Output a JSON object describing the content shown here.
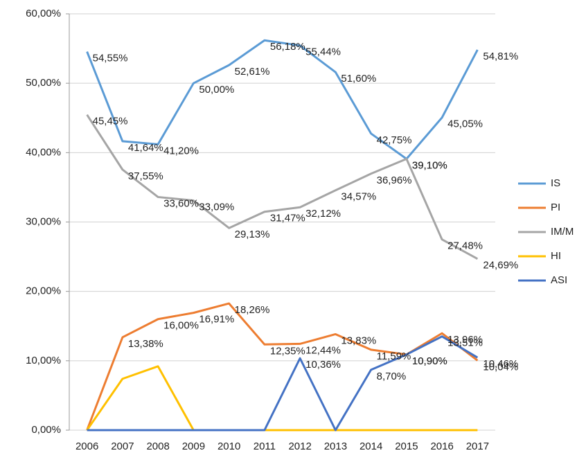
{
  "chart_data": {
    "type": "line",
    "categories": [
      "2006",
      "2007",
      "2008",
      "2009",
      "2010",
      "2011",
      "2012",
      "2013",
      "2014",
      "2015",
      "2016",
      "2017"
    ],
    "ylim": [
      0,
      60
    ],
    "yticks": [
      {
        "value": 0,
        "label": "0,00%"
      },
      {
        "value": 10,
        "label": "10,00%"
      },
      {
        "value": 20,
        "label": "20,00%"
      },
      {
        "value": 30,
        "label": "30,00%"
      },
      {
        "value": 40,
        "label": "40,00%"
      },
      {
        "value": 50,
        "label": "50,00%"
      },
      {
        "value": 60,
        "label": "60,00%"
      }
    ],
    "grid": true,
    "legend": "right",
    "series": [
      {
        "name": "IS",
        "color": "#5b9bd5",
        "values": [
          54.55,
          41.64,
          41.2,
          50.0,
          52.61,
          56.18,
          55.44,
          51.6,
          42.75,
          39.1,
          45.05,
          54.81
        ],
        "value_labels": [
          "54,55%",
          "41,64%",
          "41,20%",
          "50,00%",
          "52,61%",
          "56,18%",
          "55,44%",
          "51,60%",
          "42,75%",
          "39,10%",
          "45,05%",
          "54,81%"
        ]
      },
      {
        "name": "PI",
        "color": "#ed7d31",
        "values": [
          0,
          13.38,
          16.0,
          16.91,
          18.26,
          12.35,
          12.44,
          13.83,
          11.59,
          10.9,
          13.96,
          10.04
        ],
        "value_labels": [
          null,
          "13,38%",
          "16,00%",
          "16,91%",
          "18,26%",
          "12,35%",
          "12,44%",
          "13,83%",
          "11,59%",
          "10,90%",
          "13,96%",
          "10,04%"
        ]
      },
      {
        "name": "IM/M",
        "color": "#a5a5a5",
        "values": [
          45.45,
          37.55,
          33.6,
          33.09,
          29.13,
          31.47,
          32.12,
          34.57,
          36.96,
          39.1,
          27.48,
          24.69
        ],
        "value_labels": [
          "45,45%",
          "37,55%",
          "33,60%",
          "33,09%",
          "29,13%",
          "31,47%",
          "32,12%",
          "34,57%",
          "36,96%",
          "39,10%",
          "27,48%",
          "24,69%"
        ]
      },
      {
        "name": "HI",
        "color": "#ffc000",
        "values": [
          0,
          7.4,
          9.2,
          0,
          0,
          0,
          0,
          0,
          0,
          0,
          0,
          0
        ]
      },
      {
        "name": "ASI",
        "color": "#4472c4",
        "values": [
          0,
          0,
          0,
          0,
          0,
          0,
          10.36,
          0,
          8.7,
          10.9,
          13.51,
          10.46
        ],
        "value_labels": [
          null,
          null,
          null,
          null,
          null,
          null,
          "10,36%",
          null,
          "8,70%",
          "10,90%",
          "13,51%",
          "10,46%"
        ]
      }
    ]
  }
}
